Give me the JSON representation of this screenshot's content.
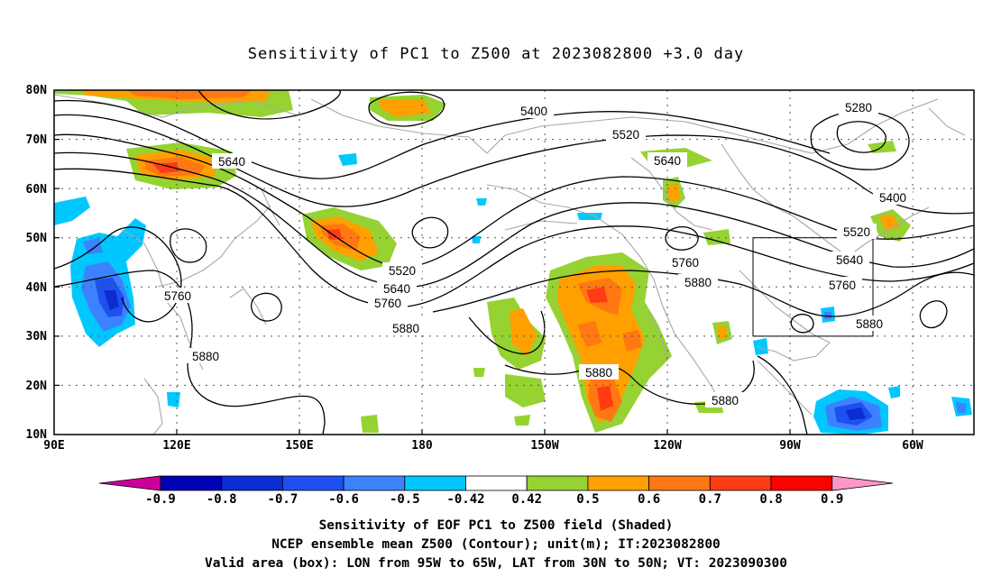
{
  "title": "Sensitivity of PC1 to Z500 at 2023082800 +3.0 day",
  "lat_labels": [
    "80N",
    "70N",
    "60N",
    "50N",
    "40N",
    "30N",
    "20N",
    "10N"
  ],
  "lon_labels": [
    "90E",
    "120E",
    "150E",
    "180",
    "150W",
    "120W",
    "90W",
    "60W"
  ],
  "contour_labels": [
    "5280",
    "5400",
    "5400",
    "5520",
    "5520",
    "5520",
    "5640",
    "5640",
    "5640",
    "5640",
    "5760",
    "5760",
    "5760",
    "5760",
    "5880",
    "5880",
    "5880",
    "5880",
    "5880",
    "5880"
  ],
  "colorbar": {
    "labels": [
      "-0.9",
      "-0.8",
      "-0.7",
      "-0.6",
      "-0.5",
      "-0.42",
      "0.42",
      "0.5",
      "0.6",
      "0.7",
      "0.8",
      "0.9"
    ],
    "colors": [
      "#cc0099",
      "#0000b4",
      "#0a2cd0",
      "#1e50f0",
      "#3c82ff",
      "#00c8ff",
      "#ffffff",
      "#96d232",
      "#ffa000",
      "#ff7814",
      "#ff3c14",
      "#ff0000",
      "#ff96c8"
    ]
  },
  "valid_box": {
    "lon_west": "95W",
    "lon_east": "65W",
    "lat_south": "30N",
    "lat_north": "50N"
  },
  "caption": [
    "Sensitivity of EOF PC1 to Z500 field (Shaded)",
    "NCEP ensemble mean Z500 (Contour); unit(m); IT:2023082800",
    "Valid area (box): LON from 95W to 65W, LAT from 30N to 50N; VT: 2023090300"
  ]
}
